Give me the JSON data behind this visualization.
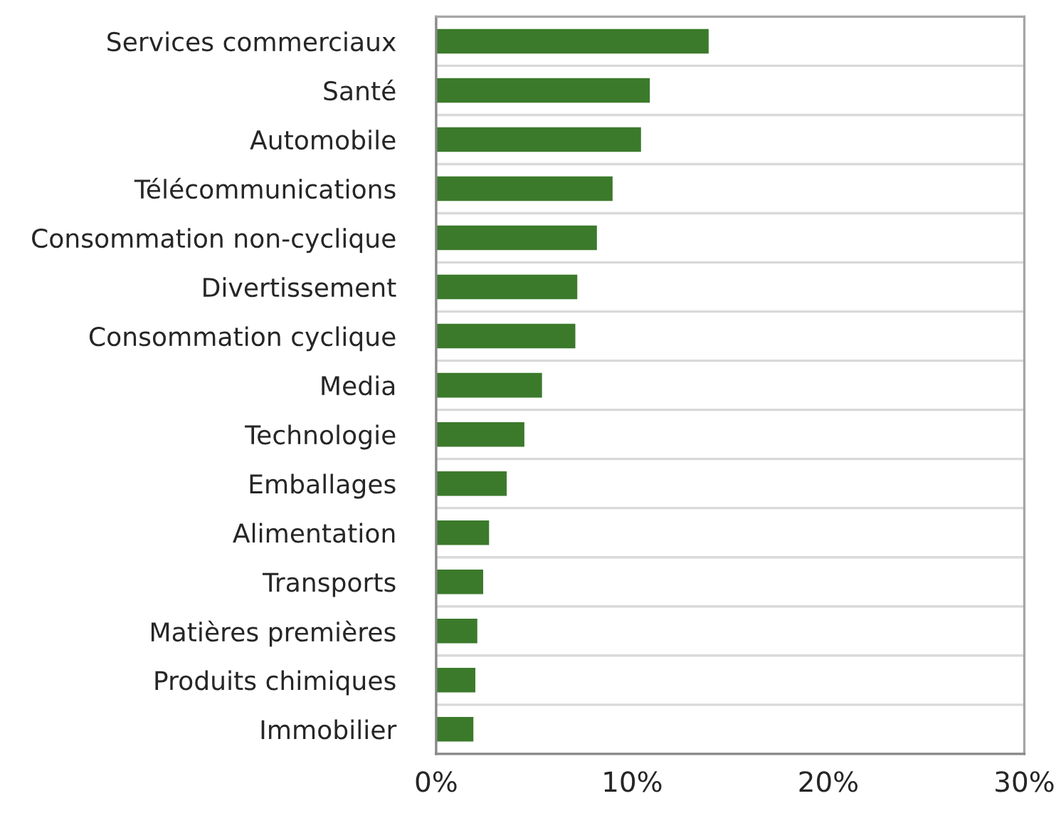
{
  "chart_data": {
    "type": "bar",
    "orientation": "horizontal",
    "categories": [
      "Services commerciaux",
      "Santé",
      "Automobile",
      "Télécommunications",
      "Consommation non-cyclique",
      "Divertissement",
      "Consommation cyclique",
      "Media",
      "Technologie",
      "Emballages",
      "Alimentation",
      "Transports",
      "Matières premières",
      "Produits chimiques",
      "Immobilier"
    ],
    "values": [
      13.9,
      10.9,
      10.45,
      9.0,
      8.2,
      7.2,
      7.1,
      5.4,
      4.5,
      3.6,
      2.7,
      2.4,
      2.1,
      2.0,
      1.9
    ],
    "color": "#3b7a2b",
    "xlim": [
      0,
      30
    ],
    "xticks": [
      {
        "value": 0,
        "label": "0%"
      },
      {
        "value": 10,
        "label": "10%"
      },
      {
        "value": 20,
        "label": "20%"
      },
      {
        "value": 30,
        "label": "30%"
      }
    ],
    "grid": "y"
  }
}
